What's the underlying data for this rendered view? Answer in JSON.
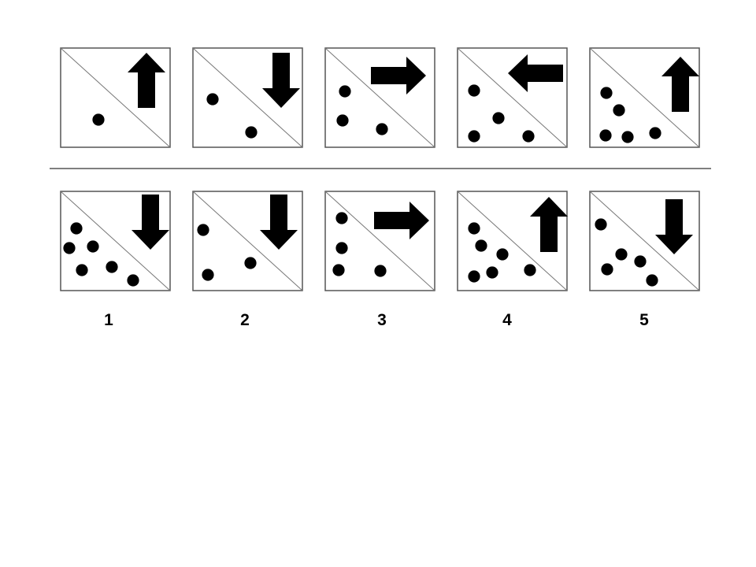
{
  "puzzle": {
    "sequence": [
      {
        "arrow": "up",
        "dot_count": 1
      },
      {
        "arrow": "down",
        "dot_count": 2
      },
      {
        "arrow": "right",
        "dot_count": 3
      },
      {
        "arrow": "left",
        "dot_count": 4
      },
      {
        "arrow": "up",
        "dot_count": 5
      }
    ],
    "options": [
      {
        "label": "1",
        "arrow": "down",
        "dot_count": 6
      },
      {
        "label": "2",
        "arrow": "down",
        "dot_count": 3
      },
      {
        "label": "3",
        "arrow": "right",
        "dot_count": 4
      },
      {
        "label": "4",
        "arrow": "up",
        "dot_count": 6
      },
      {
        "label": "5",
        "arrow": "down",
        "dot_count": 5
      }
    ],
    "colors": {
      "ink": "#000000",
      "frame": "#555555",
      "diagonal": "#777777",
      "divider": "#555555"
    }
  }
}
